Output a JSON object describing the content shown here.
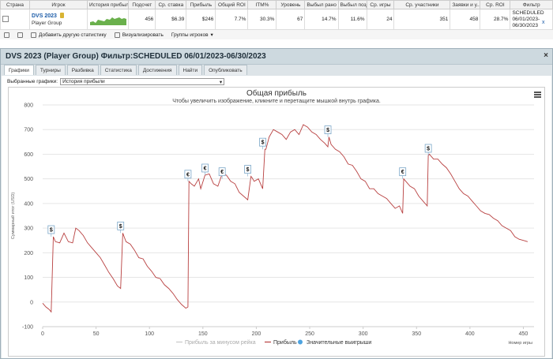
{
  "table": {
    "headers": [
      "Страна",
      "Игрок",
      "История прибыли",
      "Подсчет",
      "Ср. ставка",
      "Прибыль",
      "Общий ROI",
      "ITM%",
      "Уровень",
      "Выбыл рано",
      "Выбыл поздно",
      "Ср. игры",
      "Ср. участники",
      "Заявки и у...",
      "Ср. ROI",
      "Фильтр"
    ],
    "row": {
      "player_name": "DVS 2023",
      "player_group": "Player Group",
      "count": "456",
      "avg_stake": "$6.39",
      "profit": "$246",
      "total_roi": "7.7%",
      "itm": "30.3%",
      "level": "67",
      "early_out": "14.7%",
      "late_out": "11.6%",
      "avg_games": "24",
      "avg_entrants": "351",
      "entries": "458",
      "avg_roi": "28.7%",
      "filter": [
        "SCHEDULED",
        "06/01/2023-",
        "06/30/2023"
      ],
      "x": "x"
    }
  },
  "toolbar": {
    "add_stats": "Добавить другую статистику",
    "visualize": "Визуализировать",
    "player_groups": "Группы игроков"
  },
  "panel": {
    "title": "DVS 2023 (Player Group) Фильтр:SCHEDULED 06/01/2023-06/30/2023",
    "close": "×",
    "tabs": [
      "Графики",
      "Турниры",
      "Разбивка",
      "Статистика",
      "Достижения",
      "Найти",
      "Опубликовать"
    ],
    "selected_label": "Выбранные графики:",
    "selected_value": "История прибыли"
  },
  "chart_data": {
    "type": "line",
    "title": "Общая прибыль",
    "subtitle": "Чтобы увеличить изображение, кликните и перетащите мышкой внутрь графика.",
    "xlabel": "Номер игры",
    "ylabel": "Суммарный итог (USD)",
    "xlim": [
      0,
      460
    ],
    "ylim": [
      -100,
      800
    ],
    "xticks": [
      0,
      50,
      100,
      150,
      200,
      250,
      300,
      350,
      400,
      450
    ],
    "yticks": [
      -100,
      0,
      100,
      200,
      300,
      400,
      500,
      600,
      700,
      800
    ],
    "series": [
      {
        "name": "Прибыль",
        "color": "#b84040",
        "x": [
          0,
          3,
          6,
          8,
          10,
          12,
          16,
          20,
          24,
          28,
          31,
          34,
          38,
          42,
          46,
          50,
          54,
          58,
          62,
          66,
          70,
          73,
          75,
          78,
          82,
          86,
          90,
          94,
          98,
          102,
          106,
          110,
          114,
          118,
          122,
          126,
          130,
          134,
          136,
          137,
          139,
          142,
          146,
          148,
          152,
          156,
          160,
          164,
          168,
          172,
          176,
          180,
          184,
          188,
          192,
          195,
          196,
          198,
          202,
          206,
          208,
          209,
          212,
          216,
          220,
          224,
          228,
          232,
          236,
          240,
          244,
          248,
          252,
          256,
          260,
          264,
          267,
          268,
          270,
          274,
          278,
          282,
          286,
          290,
          294,
          298,
          302,
          306,
          310,
          314,
          318,
          322,
          326,
          330,
          334,
          337,
          338,
          340,
          344,
          348,
          352,
          356,
          360,
          361,
          362,
          366,
          370,
          374,
          378,
          382,
          386,
          390,
          394,
          398,
          402,
          406,
          410,
          414,
          418,
          422,
          426,
          430,
          434,
          438,
          442,
          446,
          450,
          454
        ],
        "y": [
          -5,
          -20,
          -30,
          -40,
          265,
          245,
          240,
          280,
          245,
          240,
          300,
          290,
          270,
          240,
          220,
          200,
          180,
          150,
          120,
          95,
          65,
          55,
          280,
          245,
          235,
          210,
          180,
          175,
          145,
          125,
          100,
          95,
          70,
          55,
          35,
          10,
          -10,
          -25,
          -20,
          490,
          480,
          470,
          500,
          460,
          515,
          520,
          480,
          470,
          520,
          515,
          490,
          480,
          445,
          430,
          415,
          510,
          505,
          490,
          500,
          460,
          620,
          620,
          670,
          700,
          690,
          680,
          660,
          690,
          700,
          680,
          720,
          710,
          690,
          680,
          660,
          645,
          630,
          670,
          640,
          620,
          610,
          590,
          560,
          555,
          530,
          500,
          490,
          460,
          460,
          440,
          430,
          420,
          400,
          380,
          390,
          360,
          500,
          490,
          470,
          460,
          430,
          410,
          390,
          595,
          600,
          580,
          580,
          560,
          545,
          520,
          490,
          460,
          440,
          430,
          410,
          390,
          370,
          360,
          355,
          340,
          330,
          310,
          300,
          290,
          265,
          255,
          250,
          245
        ]
      }
    ],
    "milestones": [
      {
        "x": 8,
        "y": 265,
        "symbol": "$"
      },
      {
        "x": 73,
        "y": 280,
        "symbol": "$"
      },
      {
        "x": 136,
        "y": 490,
        "symbol": "€"
      },
      {
        "x": 152,
        "y": 515,
        "symbol": "€"
      },
      {
        "x": 168,
        "y": 500,
        "symbol": "€"
      },
      {
        "x": 192,
        "y": 510,
        "symbol": "$"
      },
      {
        "x": 206,
        "y": 620,
        "symbol": "$"
      },
      {
        "x": 267,
        "y": 670,
        "symbol": "$"
      },
      {
        "x": 337,
        "y": 500,
        "symbol": "€"
      },
      {
        "x": 361,
        "y": 595,
        "symbol": "$"
      }
    ],
    "legend": [
      {
        "label": "Прибыль за минусом рейка",
        "color": "#c8c8c8"
      },
      {
        "label": "Прибыль",
        "color": "#b84040"
      },
      {
        "label": "Значительные выигрыши",
        "color": "#4da3e0"
      }
    ]
  }
}
